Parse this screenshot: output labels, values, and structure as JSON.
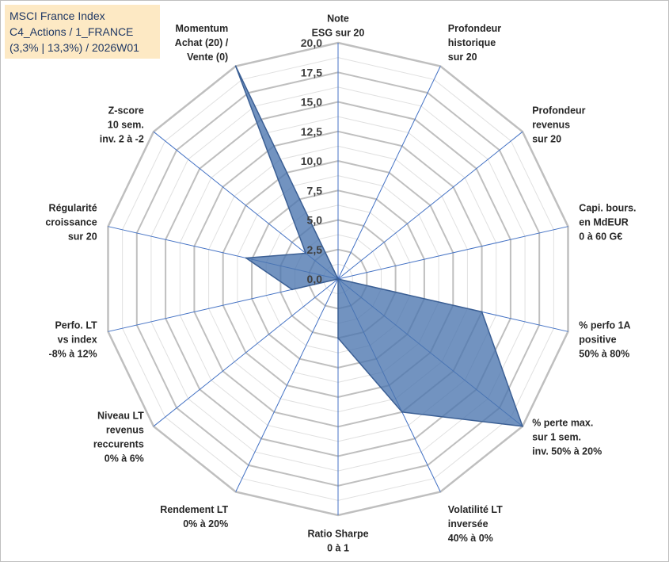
{
  "title_box": {
    "line1": "MSCI France Index",
    "line2": "C4_Actions / 1_FRANCE",
    "line3": "(3,3% | 13,3%) / 2026W01"
  },
  "chart_data": {
    "type": "radar",
    "title": "MSCI France Index C4_Actions / 1_FRANCE (3,3% | 13,3%) / 2026W01",
    "rlim": [
      0,
      20
    ],
    "r_ticks": [
      "0,0",
      "2,5",
      "5,0",
      "7,5",
      "10,0",
      "12,5",
      "15,0",
      "17,5",
      "20,0"
    ],
    "axes": [
      {
        "label": [
          "Note",
          "ESG sur 20"
        ],
        "value": 0
      },
      {
        "label": [
          "Profondeur",
          "historique",
          "sur 20"
        ],
        "value": 0
      },
      {
        "label": [
          "Profondeur",
          "revenus",
          "sur 20"
        ],
        "value": 0
      },
      {
        "label": [
          "Capi. bours.",
          "en MdEUR",
          "0 à 60 G€"
        ],
        "value": 0
      },
      {
        "label": [
          "% perfo 1A",
          "positive",
          "50% à 80%"
        ],
        "value": 12.5
      },
      {
        "label": [
          "% perte max.",
          "sur 1 sem.",
          "inv. 50% à 20%"
        ],
        "value": 20
      },
      {
        "label": [
          "Volatilité LT",
          "inversée",
          "40% à 0%"
        ],
        "value": 12.5
      },
      {
        "label": [
          "Ratio Sharpe",
          "0 à 1"
        ],
        "value": 5
      },
      {
        "label": [
          "Rendement LT",
          "0% à 20%"
        ],
        "value": 0
      },
      {
        "label": [
          "Niveau LT",
          "revenus",
          "reccurents",
          "0% à 6%"
        ],
        "value": 0
      },
      {
        "label": [
          "Perfo. LT",
          "vs index",
          "-8% à 12%"
        ],
        "value": 4
      },
      {
        "label": [
          "Régularité",
          "croissance",
          "sur 20"
        ],
        "value": 8
      },
      {
        "label": [
          "Z-score",
          "10 sem.",
          "inv. 2 à -2"
        ],
        "value": 3.5
      },
      {
        "label": [
          "Momentum",
          "Achat (20) /",
          "Vente (0)"
        ],
        "value": 20
      }
    ],
    "series": [
      {
        "name": "MSCI France Index"
      }
    ],
    "colors": {
      "fill": "#4a74ae",
      "stroke": "#3b5f94",
      "grid": "#bfbfbf",
      "minor_grid": "#e0e0e0",
      "spoke": "#4472c4"
    }
  }
}
